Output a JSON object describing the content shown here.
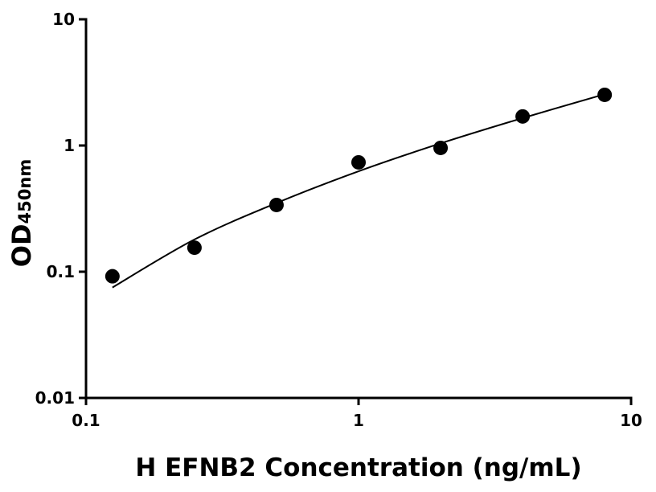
{
  "chart_data": {
    "type": "scatter",
    "x_label": "H EFNB2 Concentration (ng/mL)",
    "y_label": "OD",
    "y_label_sub": "450nm",
    "x": [
      0.125,
      0.25,
      0.5,
      1,
      2,
      4,
      8
    ],
    "values": [
      0.092,
      0.155,
      0.338,
      0.735,
      0.957,
      1.7,
      2.52
    ],
    "color": "#000000",
    "fit": {
      "x": [
        0.125,
        0.25,
        0.5,
        1,
        2,
        4,
        8
      ],
      "values": [
        0.075,
        0.18,
        0.35,
        0.625,
        1.04,
        1.65,
        2.55
      ],
      "color": "#000000"
    },
    "x_log": true,
    "y_log": true,
    "xlim": [
      0.1,
      10
    ],
    "ylim": [
      0.01,
      10
    ],
    "xticks": [
      0.1,
      1,
      10
    ],
    "yticks": [
      0.01,
      0.1,
      1,
      10
    ]
  }
}
